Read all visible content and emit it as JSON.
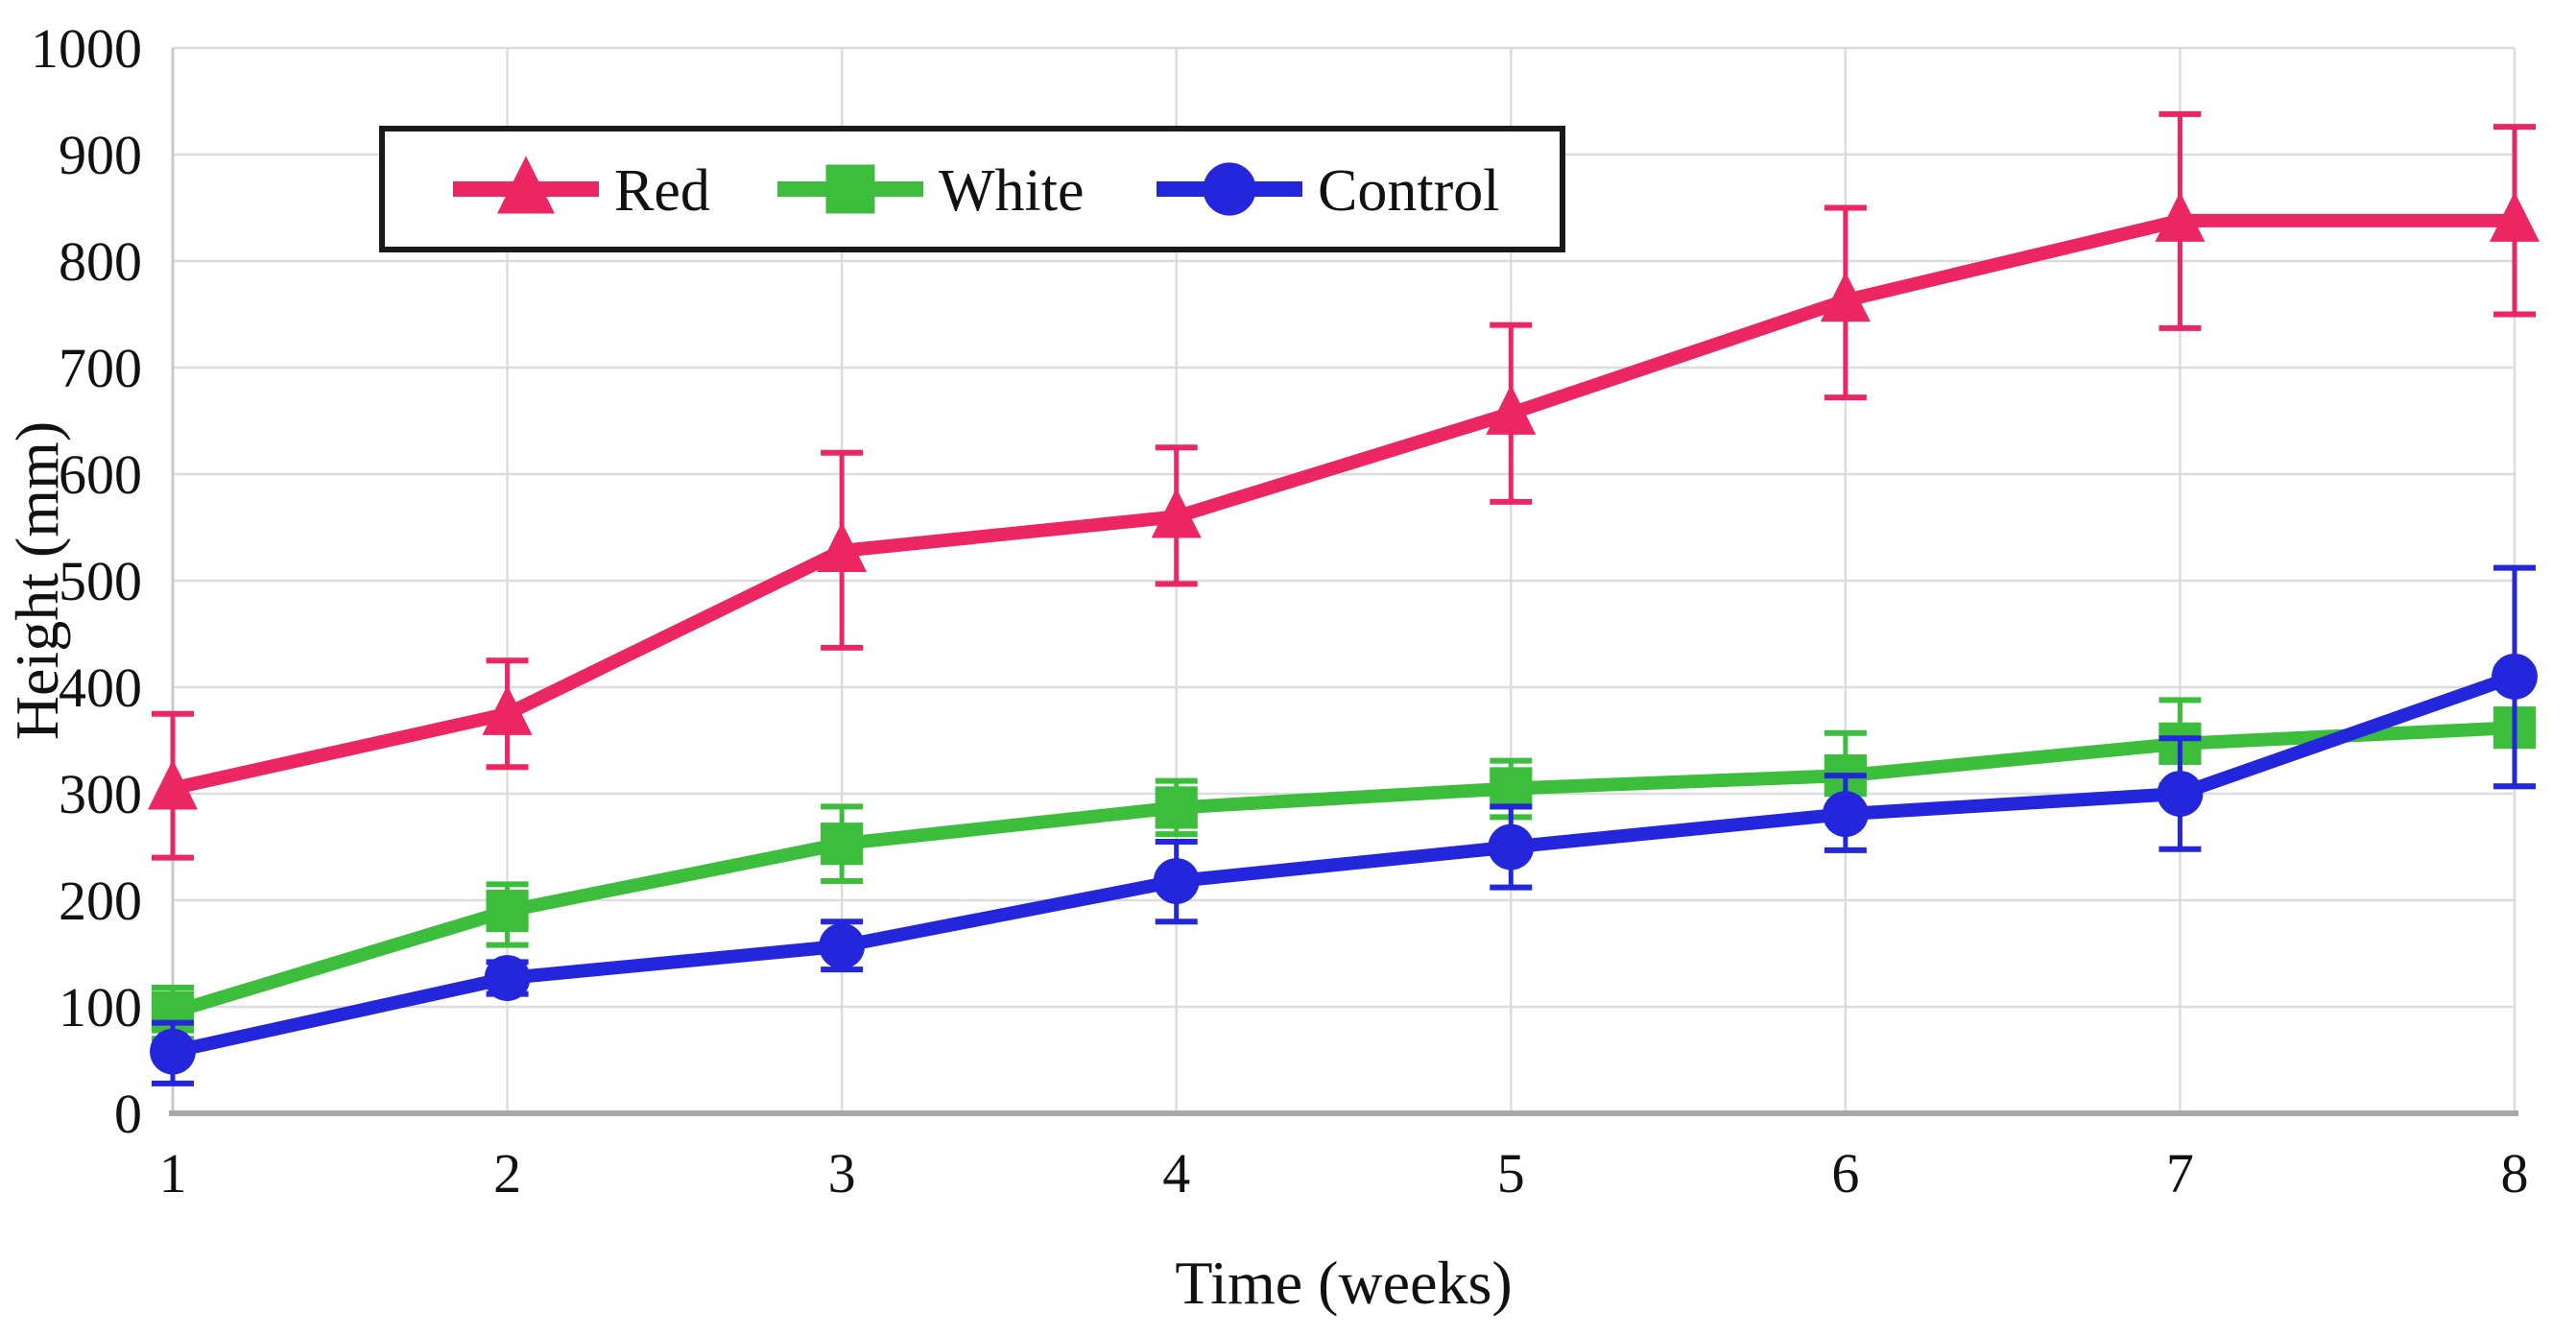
{
  "figure": {
    "background": "#ffffff"
  },
  "chart_data": {
    "type": "line",
    "title": "",
    "xlabel": "Time (weeks)",
    "ylabel": "Height (mm)",
    "x": [
      1,
      2,
      3,
      4,
      5,
      6,
      7,
      8
    ],
    "x_tick_labels": [
      "1",
      "2",
      "3",
      "4",
      "5",
      "6",
      "7",
      "8"
    ],
    "y_ticks": [
      0,
      100,
      200,
      300,
      400,
      500,
      600,
      700,
      800,
      900,
      1000
    ],
    "y_tick_labels": [
      "0",
      "100",
      "200",
      "300",
      "400",
      "500",
      "600",
      "700",
      "800",
      "900",
      "1000"
    ],
    "ylim": [
      0,
      1000
    ],
    "xlim": [
      1,
      8
    ],
    "grid": true,
    "legend_position": "top-left-inside",
    "series": [
      {
        "name": "Red",
        "color": "#EC2663",
        "marker": "triangle",
        "values": [
          305,
          375,
          528,
          560,
          657,
          763,
          838,
          838
        ],
        "error_plus": [
          70,
          50,
          92,
          65,
          83,
          87,
          100,
          88
        ],
        "error_minus": [
          65,
          50,
          91,
          63,
          83,
          91,
          101,
          88
        ]
      },
      {
        "name": "White",
        "color": "#3CBE3C",
        "marker": "square",
        "values": [
          95,
          190,
          253,
          287,
          305,
          317,
          347,
          362
        ],
        "error_plus": [
          23,
          25,
          35,
          25,
          26,
          40,
          41,
          55
        ],
        "error_minus": [
          25,
          32,
          35,
          25,
          27,
          35,
          39,
          55
        ]
      },
      {
        "name": "Control",
        "color": "#2326DB",
        "marker": "circle",
        "values": [
          58,
          127,
          157,
          218,
          250,
          281,
          300,
          410
        ],
        "error_plus": [
          27,
          15,
          23,
          37,
          38,
          36,
          52,
          102
        ],
        "error_minus": [
          30,
          15,
          22,
          38,
          38,
          34,
          52,
          103
        ]
      }
    ],
    "colors": {
      "gridline": "#DCDCDC",
      "x_axis_line": "#A8A8A8",
      "y_axis_line": "#C8C8C8",
      "legend_border": "#1A1A1A",
      "text": "#111111"
    }
  }
}
